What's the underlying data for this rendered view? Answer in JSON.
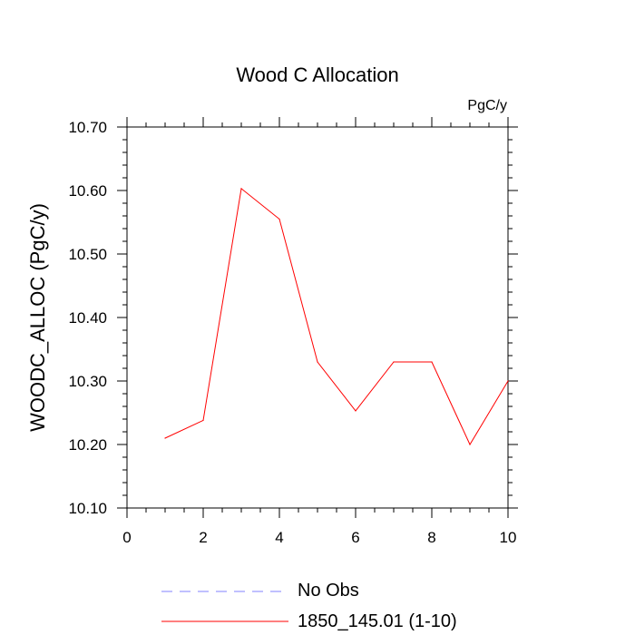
{
  "chart_data": {
    "type": "line",
    "title": "Wood C Allocation",
    "units": "PgC/y",
    "ylabel": "WOODC_ALLOC  (PgC/y)",
    "xlim": [
      0,
      10
    ],
    "ylim": [
      10.1,
      10.7
    ],
    "xticks": [
      "0",
      "2",
      "4",
      "6",
      "8",
      "10"
    ],
    "xtick_values": [
      0,
      2,
      4,
      6,
      8,
      10
    ],
    "yticks": [
      "10.10",
      "10.20",
      "10.30",
      "10.40",
      "10.50",
      "10.60",
      "10.70"
    ],
    "ytick_values": [
      10.1,
      10.2,
      10.3,
      10.4,
      10.5,
      10.6,
      10.7
    ],
    "grid": false,
    "legend_position": "bottom",
    "series": [
      {
        "name": "1850_145.01 (1-10)",
        "color": "#ff0000",
        "style": "solid",
        "x": [
          1,
          2,
          3,
          4,
          5,
          6,
          7,
          8,
          9,
          10
        ],
        "y": [
          10.21,
          10.238,
          10.603,
          10.555,
          10.33,
          10.253,
          10.33,
          10.33,
          10.2,
          10.3
        ]
      }
    ],
    "legend": [
      {
        "label": "No Obs",
        "color": "#8080ff",
        "style": "dashed"
      },
      {
        "label": "1850_145.01 (1-10)",
        "color": "#ff0000",
        "style": "solid"
      }
    ]
  }
}
